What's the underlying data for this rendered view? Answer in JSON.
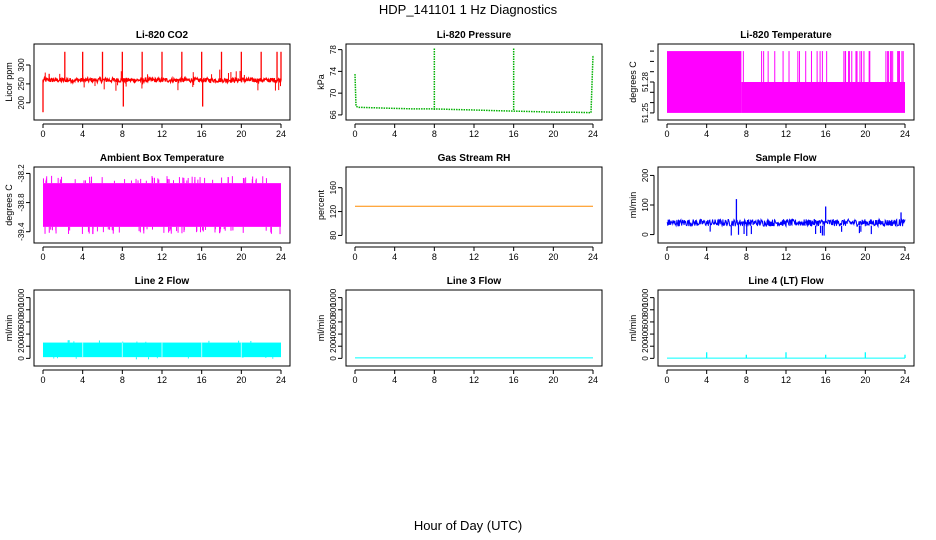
{
  "figure": {
    "title": "HDP_141101  1 Hz Diagnostics",
    "xlabel": "Hour of Day (UTC)"
  },
  "chart_data": [
    {
      "type": "line",
      "title": "Li-820 CO2",
      "ylabel": "Licor ppm",
      "color": "#ff0000",
      "xlim": [
        0,
        24
      ],
      "ylim": [
        165,
        345
      ],
      "xticks": [
        0,
        4,
        8,
        12,
        16,
        20,
        24
      ],
      "yticks": [
        200,
        250,
        300
      ],
      "baseline": 260,
      "spikes": [
        {
          "x": 0.0,
          "y": 175
        },
        {
          "x": 2.2,
          "y": 335
        },
        {
          "x": 4.0,
          "y": 335
        },
        {
          "x": 6.0,
          "y": 335
        },
        {
          "x": 8.0,
          "y": 335
        },
        {
          "x": 8.1,
          "y": 190
        },
        {
          "x": 10.0,
          "y": 335
        },
        {
          "x": 12.0,
          "y": 335
        },
        {
          "x": 14.0,
          "y": 335
        },
        {
          "x": 16.0,
          "y": 335
        },
        {
          "x": 16.1,
          "y": 190
        },
        {
          "x": 18.0,
          "y": 335
        },
        {
          "x": 20.0,
          "y": 335
        },
        {
          "x": 22.0,
          "y": 335
        },
        {
          "x": 23.6,
          "y": 335
        },
        {
          "x": 24.0,
          "y": 335
        }
      ]
    },
    {
      "type": "line",
      "title": "Li-820 Pressure",
      "ylabel": "kPa",
      "color": "#00b000",
      "xlim": [
        0,
        24
      ],
      "ylim": [
        65.8,
        78.3
      ],
      "xticks": [
        0,
        4,
        8,
        12,
        16,
        20,
        24
      ],
      "yticks": [
        66,
        70,
        74,
        78
      ],
      "x": [
        0,
        0.1,
        0.3,
        2,
        4,
        6,
        8,
        10,
        12,
        14,
        16,
        18,
        20,
        22,
        23.8,
        24
      ],
      "y": [
        73.5,
        67.6,
        67.4,
        67.3,
        67.2,
        67.1,
        67.1,
        67.0,
        66.9,
        66.8,
        66.7,
        66.6,
        66.5,
        66.5,
        66.4,
        77.0
      ],
      "spikes": [
        {
          "x": 8.0,
          "y": 78.2
        },
        {
          "x": 16.0,
          "y": 78.2
        }
      ]
    },
    {
      "type": "step",
      "title": "Li-820 Temperature",
      "ylabel": "degrees C",
      "color": "#ff00ff",
      "xlim": [
        0,
        24
      ],
      "ylim": [
        51.247,
        51.313
      ],
      "xticks": [
        0,
        4,
        8,
        12,
        16,
        20,
        24
      ],
      "yticks": [
        51.25,
        51.28
      ],
      "levels": [
        51.25,
        51.28,
        51.31
      ],
      "high_until": 7.5
    },
    {
      "type": "band",
      "title": "Ambient Box Temperature",
      "ylabel": "degrees C",
      "color": "#ff00ff",
      "xlim": [
        0,
        24
      ],
      "ylim": [
        -39.55,
        -38.15
      ],
      "xticks": [
        0,
        4,
        8,
        12,
        16,
        20,
        24
      ],
      "yticks": [
        -39.4,
        -38.8,
        -38.2
      ],
      "band": [
        -39.3,
        -38.4
      ]
    },
    {
      "type": "line",
      "title": "Gas Stream RH",
      "ylabel": "percent",
      "color": "#ff8c00",
      "xlim": [
        0,
        24
      ],
      "ylim": [
        74,
        188
      ],
      "xticks": [
        0,
        4,
        8,
        12,
        16,
        20,
        24
      ],
      "yticks": [
        80,
        120,
        160
      ],
      "x": [
        0,
        24
      ],
      "y": [
        129,
        129
      ]
    },
    {
      "type": "line",
      "title": "Sample Flow",
      "ylabel": "ml/min",
      "color": "#0000ff",
      "xlim": [
        0,
        24
      ],
      "ylim": [
        -15,
        215
      ],
      "xticks": [
        0,
        4,
        8,
        12,
        16,
        20,
        24
      ],
      "yticks": [
        0,
        100,
        200
      ],
      "band": [
        28,
        52
      ],
      "spikes": [
        {
          "x": 7.0,
          "y": 120
        },
        {
          "x": 16.0,
          "y": 95
        },
        {
          "x": 23.6,
          "y": 75
        }
      ]
    },
    {
      "type": "band",
      "title": "Line 2 Flow",
      "ylabel": "ml/min",
      "color": "#00ffff",
      "xlim": [
        0,
        24
      ],
      "ylim": [
        -60,
        1060
      ],
      "xticks": [
        0,
        4,
        8,
        12,
        16,
        20,
        24
      ],
      "yticks": [
        0,
        200,
        400,
        600,
        800,
        1000
      ],
      "band": [
        20,
        260
      ]
    },
    {
      "type": "line",
      "title": "Line 3 Flow",
      "ylabel": "ml/min",
      "color": "#00ffff",
      "xlim": [
        0,
        24
      ],
      "ylim": [
        -60,
        1060
      ],
      "xticks": [
        0,
        4,
        8,
        12,
        16,
        20,
        24
      ],
      "yticks": [
        0,
        200,
        400,
        600,
        800,
        1000
      ],
      "x": [
        0,
        24
      ],
      "y": [
        8,
        8
      ]
    },
    {
      "type": "line",
      "title": "Line 4 (LT) Flow",
      "ylabel": "ml/min",
      "color": "#00ffff",
      "xlim": [
        0,
        24
      ],
      "ylim": [
        -60,
        1060
      ],
      "xticks": [
        0,
        4,
        8,
        12,
        16,
        20,
        24
      ],
      "yticks": [
        0,
        200,
        400,
        600,
        800,
        1000
      ],
      "x": [
        0,
        24
      ],
      "y": [
        5,
        5
      ],
      "spikes": [
        {
          "x": 4.0,
          "y": 100
        },
        {
          "x": 8.0,
          "y": 60
        },
        {
          "x": 12.0,
          "y": 100
        },
        {
          "x": 16.0,
          "y": 60
        },
        {
          "x": 20.0,
          "y": 100
        },
        {
          "x": 24.0,
          "y": 60
        }
      ]
    }
  ]
}
